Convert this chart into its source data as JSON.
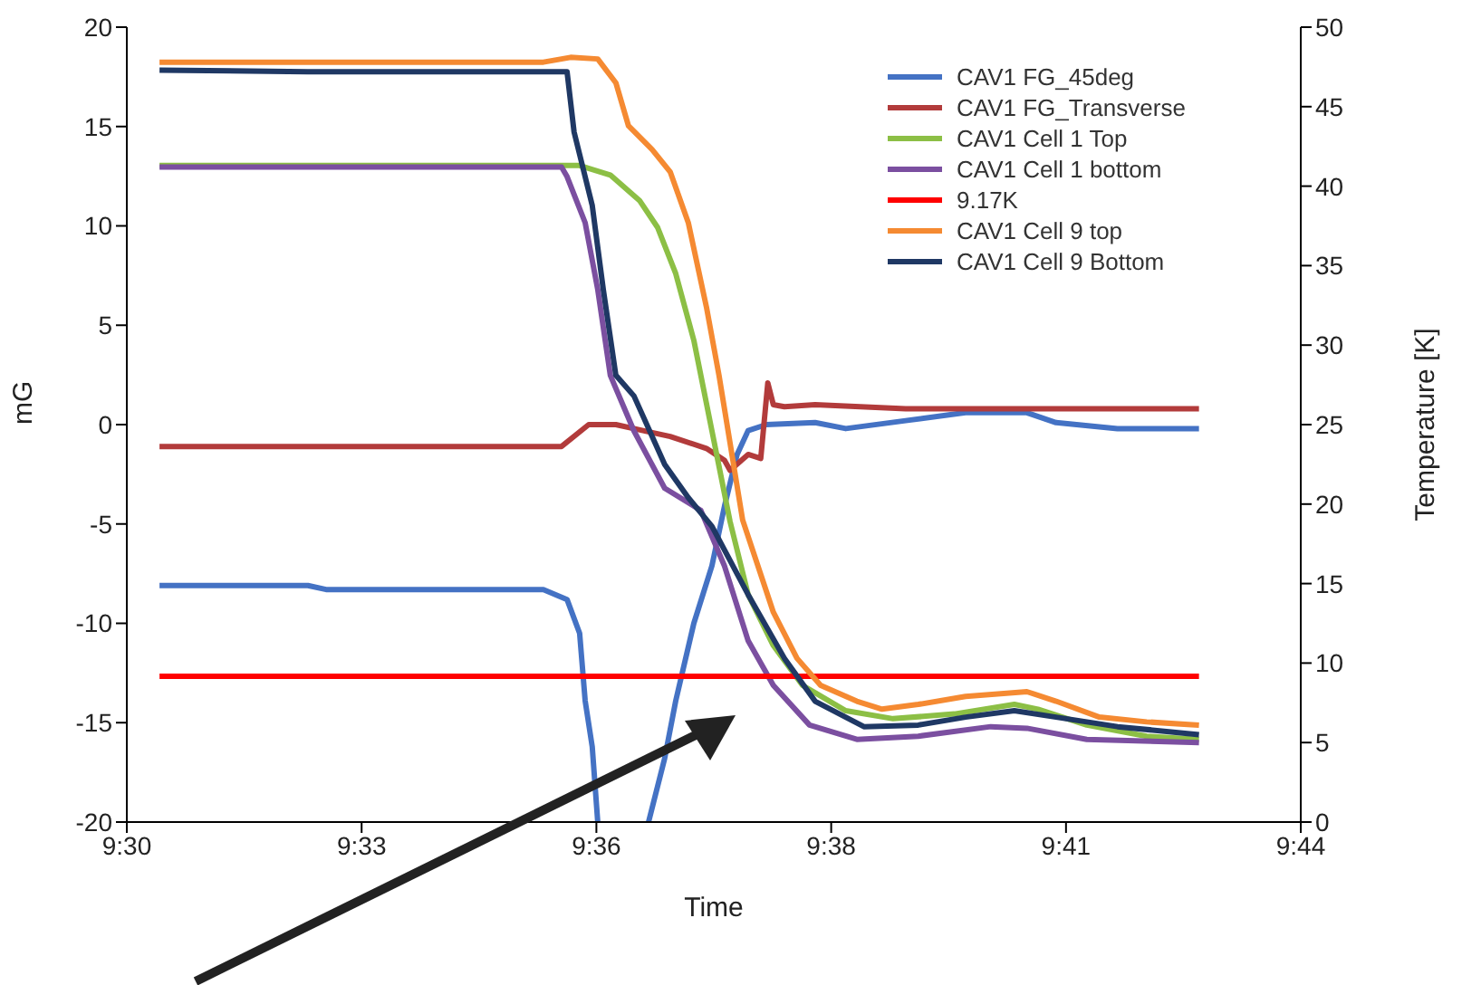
{
  "chart_data": {
    "type": "line",
    "xlabel": "Time",
    "ylabel": "mG",
    "y2label": "Temperature [K]",
    "legend": "top right",
    "grid": false,
    "marker": "none",
    "line_style": "solid",
    "xlim": [
      9.5,
      9.73333
    ],
    "xticks": [
      {
        "value": 9.5,
        "label": "9:30"
      },
      {
        "value": 9.54667,
        "label": "9:33"
      },
      {
        "value": 9.59333,
        "label": "9:36"
      },
      {
        "value": 9.64,
        "label": "9:38"
      },
      {
        "value": 9.68667,
        "label": "9:41"
      },
      {
        "value": 9.73333,
        "label": "9:44"
      }
    ],
    "ylim": [
      -20,
      20
    ],
    "yticks": [
      -20,
      -15,
      -10,
      -5,
      0,
      5,
      10,
      15,
      20
    ],
    "y2lim": [
      0,
      50
    ],
    "y2ticks": [
      0,
      5,
      10,
      15,
      20,
      25,
      30,
      35,
      40,
      45,
      50
    ],
    "series": [
      {
        "name": "CAV1 FG_45deg",
        "color": "#4472c4",
        "x": [
          9.5065,
          9.536,
          9.5396,
          9.5828,
          9.5875,
          9.59,
          9.5911,
          9.5925,
          9.5936,
          9.599,
          9.6037,
          9.6069,
          9.6091,
          9.6127,
          9.6163,
          9.6188,
          9.6213,
          9.6235,
          9.6271,
          9.6368,
          9.6429,
          9.6548,
          9.6667,
          9.6789,
          9.6847,
          9.6969,
          9.7131
        ],
        "values": [
          -8.1,
          -8.1,
          -8.3,
          -8.3,
          -8.8,
          -10.5,
          -13.9,
          -16.2,
          -20,
          null,
          -20,
          -16.8,
          -13.9,
          -10.0,
          -7.1,
          -4.1,
          -1.5,
          -0.3,
          0,
          0.1,
          -0.2,
          0.2,
          0.6,
          0.6,
          0.1,
          -0.2,
          -0.2
        ]
      },
      {
        "name": "CAV1 FG_Transverse",
        "color": "#b23b3b",
        "x": [
          9.5065,
          9.5864,
          9.5918,
          9.5972,
          9.6026,
          9.608,
          9.6152,
          9.6188,
          9.6199,
          9.6235,
          9.626,
          9.6274,
          9.6285,
          9.6307,
          9.6368,
          9.6548,
          9.7131
        ],
        "values": [
          -1.1,
          -1.1,
          0,
          0,
          -0.3,
          -0.6,
          -1.2,
          -1.8,
          -2.3,
          -1.5,
          -1.7,
          2.1,
          1.0,
          0.9,
          1.0,
          0.8,
          0.8
        ],
        "axis": "y"
      },
      {
        "name": "CAV1 Cell 1 Top",
        "color": "#8cbf45",
        "axis": "y2",
        "x": [
          9.5065,
          9.59,
          9.5961,
          9.6019,
          9.6055,
          9.6091,
          9.6127,
          9.6163,
          9.6199,
          9.6235,
          9.6285,
          9.6343,
          9.6429,
          9.6523,
          9.6645,
          9.6764,
          9.6811,
          9.6908,
          9.7027,
          9.7131
        ],
        "values": [
          41.3,
          41.3,
          40.7,
          39.1,
          37.4,
          34.5,
          30.3,
          24.6,
          18.9,
          14.3,
          11.1,
          8.6,
          7.0,
          6.5,
          6.8,
          7.4,
          7.1,
          6.1,
          5.4,
          5.2
        ]
      },
      {
        "name": "CAV1 Cell 1 bottom",
        "color": "#7b4fa0",
        "axis": "y2",
        "x": [
          9.5065,
          9.5864,
          9.5875,
          9.5911,
          9.5936,
          9.5961,
          9.6008,
          9.6069,
          9.6141,
          9.6188,
          9.6235,
          9.6285,
          9.6357,
          9.6451,
          9.6573,
          9.6717,
          9.6789,
          9.6908,
          9.7131
        ],
        "values": [
          41.2,
          41.2,
          40.6,
          37.7,
          33.5,
          28.1,
          24.6,
          21.0,
          19.6,
          16.1,
          11.4,
          8.6,
          6.1,
          5.2,
          5.4,
          6.0,
          5.9,
          5.2,
          5.0
        ]
      },
      {
        "name": "9.17K",
        "color": "#ff0000",
        "axis": "y2",
        "x": [
          9.5065,
          9.7131
        ],
        "values": [
          9.17,
          9.17
        ]
      },
      {
        "name": "CAV1 Cell 9 top",
        "color": "#f58a32",
        "axis": "y2",
        "x": [
          9.5065,
          9.5828,
          9.5882,
          9.5936,
          9.5972,
          9.5997,
          9.6044,
          9.608,
          9.6116,
          9.6152,
          9.6177,
          9.6224,
          9.6285,
          9.6332,
          9.6379,
          9.6451,
          9.6501,
          9.6573,
          9.6667,
          9.6789,
          9.6847,
          9.6933,
          9.7027,
          9.7131
        ],
        "values": [
          47.8,
          47.8,
          48.1,
          48.0,
          46.5,
          43.8,
          42.3,
          40.9,
          37.7,
          32.4,
          28.1,
          19.0,
          13.2,
          10.3,
          8.6,
          7.6,
          7.1,
          7.4,
          7.9,
          8.2,
          7.6,
          6.6,
          6.3,
          6.1
        ]
      },
      {
        "name": "CAV1 Cell 9 Bottom",
        "color": "#1f3864",
        "axis": "y2",
        "x": [
          9.5065,
          9.536,
          9.5875,
          9.5889,
          9.5925,
          9.5947,
          9.5972,
          9.6008,
          9.6069,
          9.6116,
          9.6163,
          9.6235,
          9.6307,
          9.6368,
          9.6465,
          9.6573,
          9.6667,
          9.6764,
          9.6847,
          9.6969,
          9.7131
        ],
        "values": [
          47.3,
          47.2,
          47.2,
          43.4,
          38.8,
          33.5,
          28.1,
          26.8,
          22.5,
          20.4,
          18.6,
          14.3,
          10.3,
          7.6,
          6.0,
          6.1,
          6.6,
          7.0,
          6.6,
          6.0,
          5.5
        ]
      }
    ]
  }
}
